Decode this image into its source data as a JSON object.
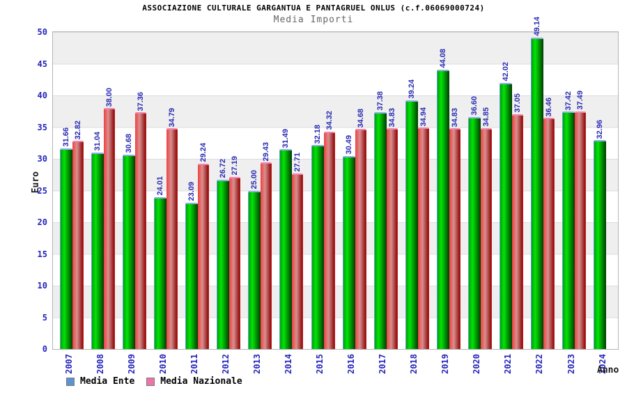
{
  "chart_data": {
    "type": "bar",
    "title": "ASSOCIAZIONE CULTURALE GARGANTUA E PANTAGRUEL ONLUS (c.f.06069000724)",
    "subtitle": "Media Importi",
    "xlabel": "Anno",
    "ylabel": "Euro",
    "ylim": [
      0,
      50
    ],
    "y_ticks": [
      0,
      5,
      10,
      15,
      20,
      25,
      30,
      35,
      40,
      45,
      50
    ],
    "grid": "horizontal bands every 5, alternating gray/white",
    "legend_position": "bottom-left",
    "categories": [
      "2007",
      "2008",
      "2009",
      "2010",
      "2011",
      "2012",
      "2013",
      "2014",
      "2015",
      "2016",
      "2017",
      "2018",
      "2019",
      "2020",
      "2021",
      "2022",
      "2023",
      "2024"
    ],
    "series": [
      {
        "name": "Media Ente",
        "legend_color": "#5d92d4",
        "bar_fill": "green gradient",
        "values": [
          31.66,
          31.04,
          30.68,
          24.01,
          23.09,
          26.72,
          25.0,
          31.49,
          32.18,
          30.49,
          37.38,
          39.24,
          44.08,
          36.6,
          42.02,
          49.14,
          37.42,
          32.96
        ]
      },
      {
        "name": "Media Nazionale",
        "legend_color": "#ec74ab",
        "bar_fill": "red gradient",
        "values": [
          32.82,
          38.0,
          37.36,
          34.79,
          29.24,
          27.19,
          29.43,
          27.71,
          34.32,
          34.68,
          34.83,
          34.94,
          34.83,
          34.85,
          37.05,
          36.46,
          37.49,
          null
        ]
      }
    ],
    "value_label_color": "#2a2ab4",
    "axis_label_color": "#2424bb"
  }
}
